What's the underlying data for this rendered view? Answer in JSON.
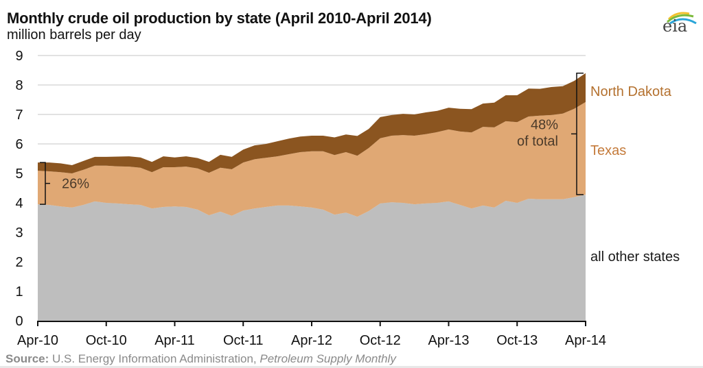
{
  "header": {
    "title": "Monthly crude oil production by state (April 2010-April 2014)",
    "subtitle": "million barrels per day",
    "logo_text": "eia"
  },
  "source": {
    "label": "Source:",
    "text": " U.S. Energy Information Administration, ",
    "publication": "Petroleum Supply Monthly"
  },
  "colors": {
    "north_dakota": "#8B5520",
    "texas": "#E0A874",
    "other": "#BEBEBE",
    "label_brown": "#B4712F",
    "label_texas": "#C47A3A",
    "grid": "#d9d9d9"
  },
  "chart_data": {
    "type": "area",
    "stacked": true,
    "title": "Monthly crude oil production by state (April 2010-April 2014)",
    "ylabel": "million barrels per day",
    "xlabel": "",
    "ylim": [
      0,
      9
    ],
    "yticks": [
      0,
      1,
      2,
      3,
      4,
      5,
      6,
      7,
      8,
      9
    ],
    "grid": true,
    "x_start": "Apr-10",
    "x_end": "Apr-14",
    "months": 49,
    "xticks": [
      {
        "label": "Apr-10",
        "month_index": 0
      },
      {
        "label": "Oct-10",
        "month_index": 6
      },
      {
        "label": "Apr-11",
        "month_index": 12
      },
      {
        "label": "Oct-11",
        "month_index": 18
      },
      {
        "label": "Apr-12",
        "month_index": 24
      },
      {
        "label": "Oct-12",
        "month_index": 30
      },
      {
        "label": "Apr-13",
        "month_index": 36
      },
      {
        "label": "Oct-13",
        "month_index": 42
      },
      {
        "label": "Apr-14",
        "month_index": 48
      }
    ],
    "series": [
      {
        "name": "all other states",
        "color": "#BEBEBE",
        "values": [
          3.95,
          3.93,
          3.88,
          3.84,
          3.93,
          4.05,
          4.0,
          3.98,
          3.95,
          3.93,
          3.81,
          3.86,
          3.88,
          3.86,
          3.77,
          3.58,
          3.7,
          3.56,
          3.74,
          3.81,
          3.86,
          3.91,
          3.91,
          3.88,
          3.84,
          3.77,
          3.6,
          3.67,
          3.53,
          3.72,
          3.98,
          4.02,
          4.0,
          3.95,
          3.98,
          4.0,
          4.05,
          3.93,
          3.81,
          3.91,
          3.84,
          4.07,
          4.0,
          4.14,
          4.12,
          4.12,
          4.12,
          4.19,
          4.28
        ]
      },
      {
        "name": "Texas",
        "color": "#E0A874",
        "values": [
          1.14,
          1.14,
          1.16,
          1.16,
          1.19,
          1.21,
          1.26,
          1.26,
          1.28,
          1.26,
          1.23,
          1.35,
          1.33,
          1.37,
          1.4,
          1.44,
          1.49,
          1.58,
          1.63,
          1.67,
          1.67,
          1.67,
          1.74,
          1.84,
          1.91,
          1.98,
          2.02,
          2.05,
          2.07,
          2.14,
          2.21,
          2.26,
          2.3,
          2.33,
          2.35,
          2.4,
          2.44,
          2.49,
          2.58,
          2.67,
          2.72,
          2.7,
          2.74,
          2.79,
          2.84,
          2.86,
          2.91,
          3.0,
          3.14
        ]
      },
      {
        "name": "North Dakota",
        "color": "#8B5520",
        "values": [
          0.28,
          0.3,
          0.3,
          0.28,
          0.3,
          0.3,
          0.3,
          0.33,
          0.35,
          0.35,
          0.35,
          0.37,
          0.33,
          0.35,
          0.35,
          0.37,
          0.44,
          0.42,
          0.44,
          0.47,
          0.47,
          0.51,
          0.53,
          0.53,
          0.53,
          0.53,
          0.6,
          0.6,
          0.67,
          0.65,
          0.72,
          0.7,
          0.72,
          0.72,
          0.74,
          0.72,
          0.74,
          0.77,
          0.79,
          0.79,
          0.84,
          0.88,
          0.91,
          0.95,
          0.91,
          0.95,
          0.93,
          0.95,
          0.98
        ]
      }
    ],
    "legend": {
      "placement": "right",
      "entries": [
        "North Dakota",
        "Texas",
        "all other states"
      ]
    },
    "annotations": [
      {
        "text": "26%",
        "month_index": 0,
        "spans": [
          "Texas",
          "North Dakota"
        ]
      },
      {
        "text_line1": "48%",
        "text_line2": "of total",
        "month_index": 48,
        "spans": [
          "Texas",
          "North Dakota"
        ]
      }
    ]
  }
}
